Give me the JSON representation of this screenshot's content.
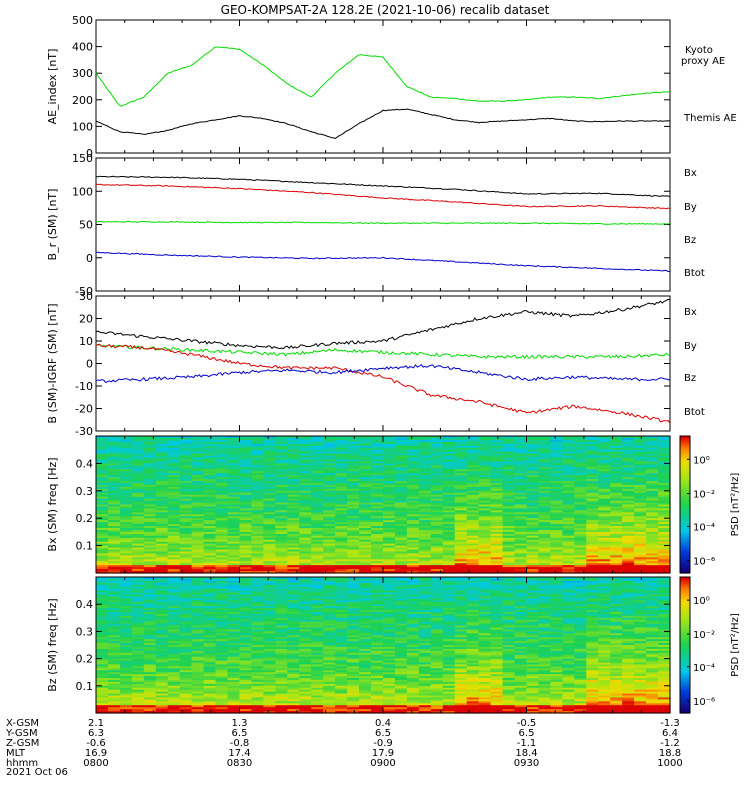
{
  "title": "GEO-KOMPSAT-2A 128.2E (2021-10-06) recalib dataset",
  "time_axis": {
    "ticks": [
      "0800",
      "0830",
      "0900",
      "0930",
      "1000"
    ],
    "date": "2021 Oct 06",
    "rows": [
      {
        "label": "X-GSM",
        "values": [
          "2.1",
          "1.3",
          "0.4",
          "-0.5",
          "-1.3"
        ]
      },
      {
        "label": "Y-GSM",
        "values": [
          "6.3",
          "6.5",
          "6.5",
          "6.5",
          "6.4"
        ]
      },
      {
        "label": "Z-GSM",
        "values": [
          "-0.6",
          "-0.8",
          "-0.9",
          "-1.1",
          "-1.2"
        ]
      },
      {
        "label": "MLT",
        "values": [
          "16.9",
          "17.4",
          "17.9",
          "18.4",
          "18.8"
        ]
      },
      {
        "label": "hhmm",
        "values": [
          "0800",
          "0830",
          "0900",
          "0930",
          "1000"
        ]
      }
    ]
  },
  "colors": {
    "kyoto": "#00dd00",
    "themis": "#000000",
    "bx": "#0000cc",
    "by": "#00dd00",
    "bz": "#dd0000",
    "btot": "#000000"
  },
  "chart_data": [
    {
      "type": "line",
      "ylabel": "AE_index [nT]",
      "ylim": [
        0,
        500
      ],
      "yticks": [
        "0",
        "100",
        "200",
        "300",
        "400",
        "500"
      ],
      "x": [
        "0800",
        "0805",
        "0810",
        "0815",
        "0820",
        "0825",
        "0830",
        "0835",
        "0840",
        "0845",
        "0850",
        "0855",
        "0900",
        "0905",
        "0910",
        "0915",
        "0920",
        "0925",
        "0930",
        "0935",
        "0940",
        "0945",
        "0950",
        "0955",
        "1000"
      ],
      "series": [
        {
          "name": "Kyoto proxy AE",
          "values": [
            300,
            175,
            210,
            300,
            330,
            400,
            390,
            330,
            260,
            210,
            300,
            370,
            360,
            250,
            210,
            205,
            195,
            195,
            200,
            210,
            210,
            205,
            215,
            225,
            230
          ]
        },
        {
          "name": "Themis AE",
          "values": [
            120,
            80,
            70,
            85,
            110,
            125,
            140,
            130,
            110,
            80,
            55,
            110,
            160,
            165,
            145,
            125,
            115,
            120,
            125,
            130,
            120,
            118,
            120,
            120,
            120
          ]
        }
      ],
      "legend": [
        "Kyoto proxy AE",
        "Themis AE"
      ]
    },
    {
      "type": "line",
      "ylabel": "B_r (SM) [nT]",
      "ylim": [
        -50,
        150
      ],
      "yticks": [
        "-50",
        "0",
        "50",
        "100",
        "150"
      ],
      "x": [
        "0800",
        "0815",
        "0830",
        "0845",
        "0900",
        "0915",
        "0930",
        "0945",
        "1000"
      ],
      "series": [
        {
          "name": "Btot",
          "values": [
            122,
            121,
            118,
            113,
            108,
            103,
            96,
            97,
            92
          ]
        },
        {
          "name": "Bz",
          "values": [
            110,
            108,
            104,
            98,
            90,
            84,
            77,
            78,
            74
          ]
        },
        {
          "name": "By",
          "values": [
            54,
            54,
            53,
            53,
            52,
            52,
            52,
            51,
            51
          ]
        },
        {
          "name": "Bx",
          "values": [
            8,
            4,
            1,
            -1,
            0,
            -6,
            -12,
            -16,
            -20
          ]
        }
      ],
      "legend": [
        "Bx",
        "By",
        "Bz",
        "Btot"
      ]
    },
    {
      "type": "line",
      "ylabel": "B (SM)-IGRF (SM) [nT]",
      "ylim": [
        -30,
        30
      ],
      "yticks": [
        "-30",
        "-20",
        "-10",
        "0",
        "10",
        "20",
        "30"
      ],
      "x": [
        "0800",
        "0810",
        "0820",
        "0830",
        "0840",
        "0850",
        "0900",
        "0910",
        "0920",
        "0930",
        "0940",
        "0950",
        "1000"
      ],
      "series": [
        {
          "name": "Btot",
          "values": [
            14,
            12,
            10,
            8,
            7,
            9,
            10,
            15,
            20,
            23,
            21,
            24,
            28
          ]
        },
        {
          "name": "By",
          "values": [
            8,
            7,
            6,
            5,
            4,
            6,
            5,
            4,
            3,
            3,
            3,
            3,
            4
          ]
        },
        {
          "name": "Bz",
          "values": [
            8,
            7,
            4,
            0,
            -2,
            -2,
            -6,
            -14,
            -17,
            -22,
            -19,
            -22,
            -26
          ]
        },
        {
          "name": "Bx",
          "values": [
            -8,
            -7,
            -6,
            -4,
            -3,
            -4,
            -2,
            -1,
            -4,
            -7,
            -6,
            -7,
            -7
          ]
        }
      ],
      "legend": [
        "Bx",
        "By",
        "Bz",
        "Btot"
      ]
    },
    {
      "type": "heatmap",
      "ylabel": "Bx (SM) freq [Hz]",
      "ylim": [
        0,
        0.5
      ],
      "yticks": [
        "0.1",
        "0.2",
        "0.3",
        "0.4"
      ],
      "colorbar": {
        "label": "PSD [nT²/Hz]",
        "ticks": [
          "10⁰",
          "10⁻²",
          "10⁻⁴",
          "10⁻⁶"
        ]
      }
    },
    {
      "type": "heatmap",
      "ylabel": "Bz (SM) freq [Hz]",
      "ylim": [
        0,
        0.5
      ],
      "yticks": [
        "0.1",
        "0.2",
        "0.3",
        "0.4"
      ],
      "colorbar": {
        "label": "PSD [nT²/Hz]",
        "ticks": [
          "10⁰",
          "10⁻²",
          "10⁻⁴",
          "10⁻⁶"
        ]
      }
    }
  ]
}
